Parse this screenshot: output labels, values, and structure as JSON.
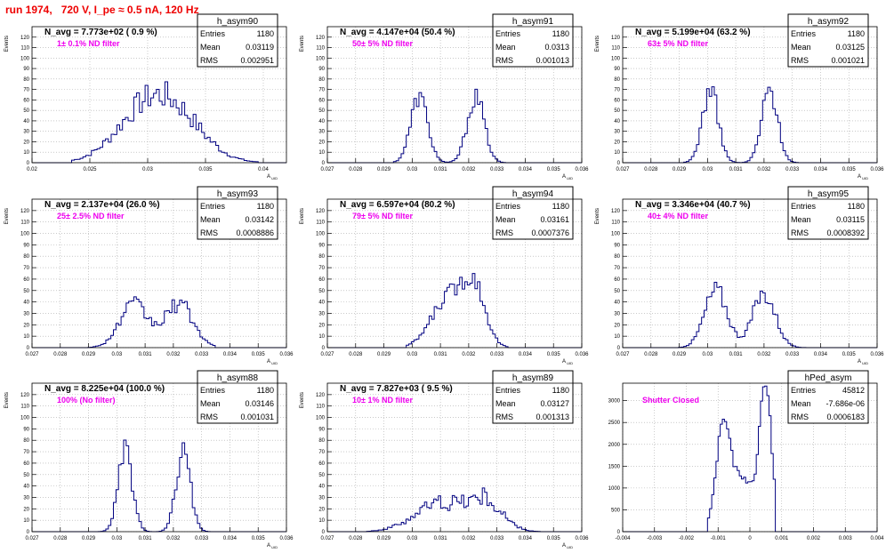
{
  "page": {
    "title": "run 1974,   720 V, I_pe ≈ 0.5 nA, 120 Hz"
  },
  "chart_data": [
    {
      "type": "bar",
      "name": "h_asym90",
      "summary": "N_avg = 7.773e+02 ( 0.9 %)",
      "filter": "1± 0.1% ND filter",
      "stats": [
        [
          "Entries",
          "1180"
        ],
        [
          "Mean",
          "0.03119"
        ],
        [
          "RMS",
          "0.002951"
        ]
      ],
      "xlabel": "A_UID",
      "ylabel": "Events",
      "xlim": [
        0.02,
        0.042
      ],
      "ylim": [
        0,
        130
      ],
      "grid": true,
      "xticks": [
        0.02,
        0.025,
        0.03,
        0.035,
        0.04
      ],
      "xtick_labels": [
        "0.02",
        "0.025",
        "0.03",
        "0.035",
        "0.04"
      ],
      "yticks": [
        0,
        10,
        20,
        30,
        40,
        50,
        60,
        70,
        80,
        90,
        100,
        110,
        120
      ],
      "ytick_labels": [
        "0",
        "10",
        "20",
        "30",
        "40",
        "50",
        "60",
        "70",
        "80",
        "90",
        "100",
        "110",
        "120"
      ],
      "peaks": [
        [
          0.0295,
          40,
          0.0025
        ],
        [
          0.0325,
          38,
          0.0025
        ]
      ],
      "range": [
        0.0235,
        0.0395
      ],
      "bins": 90,
      "noise": 0.22
    },
    {
      "type": "bar",
      "name": "h_asym91",
      "summary": "N_avg = 4.147e+04 (50.4 %)",
      "filter": "50± 5% ND filter",
      "stats": [
        [
          "Entries",
          "1180"
        ],
        [
          "Mean",
          "0.0313"
        ],
        [
          "RMS",
          "0.001013"
        ]
      ],
      "xlabel": "A_UID",
      "ylabel": "Events",
      "xlim": [
        0.027,
        0.036
      ],
      "ylim": [
        0,
        130
      ],
      "grid": true,
      "xticks": [
        0.027,
        0.028,
        0.029,
        0.03,
        0.031,
        0.032,
        0.033,
        0.034,
        0.035,
        0.036
      ],
      "xtick_labels": [
        "0.027",
        "0.028",
        "0.029",
        "0.03",
        "0.031",
        "0.032",
        "0.033",
        "0.034",
        "0.035",
        "0.036"
      ],
      "yticks": [
        0,
        10,
        20,
        30,
        40,
        50,
        60,
        70,
        80,
        90,
        100,
        110,
        120
      ],
      "ytick_labels": [
        "0",
        "10",
        "20",
        "30",
        "40",
        "50",
        "60",
        "70",
        "80",
        "90",
        "100",
        "110",
        "120"
      ],
      "peaks": [
        [
          0.03025,
          63,
          0.0003
        ],
        [
          0.03225,
          63,
          0.0003
        ]
      ],
      "range": [
        0.0293,
        0.0333
      ],
      "bins": 100,
      "noise": 0.15
    },
    {
      "type": "bar",
      "name": "h_asym92",
      "summary": "N_avg = 5.199e+04 (63.2 %)",
      "filter": "63± 5% ND filter",
      "stats": [
        [
          "Entries",
          "1180"
        ],
        [
          "Mean",
          "0.03125"
        ],
        [
          "RMS",
          "0.001021"
        ]
      ],
      "xlabel": "A_UID",
      "ylabel": "Events",
      "xlim": [
        0.027,
        0.036
      ],
      "ylim": [
        0,
        130
      ],
      "grid": true,
      "xticks": [
        0.027,
        0.028,
        0.029,
        0.03,
        0.031,
        0.032,
        0.033,
        0.034,
        0.035,
        0.036
      ],
      "xtick_labels": [
        "0.027",
        "0.028",
        "0.029",
        "0.03",
        "0.031",
        "0.032",
        "0.033",
        "0.034",
        "0.035",
        "0.036"
      ],
      "yticks": [
        0,
        10,
        20,
        30,
        40,
        50,
        60,
        70,
        80,
        90,
        100,
        110,
        120
      ],
      "ytick_labels": [
        "0",
        "10",
        "20",
        "30",
        "40",
        "50",
        "60",
        "70",
        "80",
        "90",
        "100",
        "110",
        "120"
      ],
      "peaks": [
        [
          0.0301,
          70,
          0.00028
        ],
        [
          0.0322,
          70,
          0.00028
        ]
      ],
      "range": [
        0.0292,
        0.0332
      ],
      "bins": 100,
      "noise": 0.15
    },
    {
      "type": "bar",
      "name": "h_asym93",
      "summary": "N_avg = 2.137e+04 (26.0 %)",
      "filter": "25± 2.5% ND filter",
      "stats": [
        [
          "Entries",
          "1180"
        ],
        [
          "Mean",
          "0.03142"
        ],
        [
          "RMS",
          "0.0008886"
        ]
      ],
      "xlabel": "A_UID",
      "ylabel": "Events",
      "xlim": [
        0.027,
        0.036
      ],
      "ylim": [
        0,
        130
      ],
      "grid": true,
      "xticks": [
        0.027,
        0.028,
        0.029,
        0.03,
        0.031,
        0.032,
        0.033,
        0.034,
        0.035,
        0.036
      ],
      "xtick_labels": [
        "0.027",
        "0.028",
        "0.029",
        "0.03",
        "0.031",
        "0.032",
        "0.033",
        "0.034",
        "0.035",
        "0.036"
      ],
      "yticks": [
        0,
        10,
        20,
        30,
        40,
        50,
        60,
        70,
        80,
        90,
        100,
        110,
        120
      ],
      "ytick_labels": [
        "0",
        "10",
        "20",
        "30",
        "40",
        "50",
        "60",
        "70",
        "80",
        "90",
        "100",
        "110",
        "120"
      ],
      "peaks": [
        [
          0.0306,
          37,
          0.0005
        ],
        [
          0.0322,
          38,
          0.0005
        ]
      ],
      "range": [
        0.029,
        0.0335
      ],
      "bins": 100,
      "noise": 0.2
    },
    {
      "type": "bar",
      "name": "h_asym94",
      "summary": "N_avg = 6.597e+04 (80.2 %)",
      "filter": "79± 5% ND filter",
      "stats": [
        [
          "Entries",
          "1180"
        ],
        [
          "Mean",
          "0.03161"
        ],
        [
          "RMS",
          "0.0007376"
        ]
      ],
      "xlabel": "A_UID",
      "ylabel": "Events",
      "xlim": [
        0.027,
        0.036
      ],
      "ylim": [
        0,
        130
      ],
      "grid": true,
      "xticks": [
        0.027,
        0.028,
        0.029,
        0.03,
        0.031,
        0.032,
        0.033,
        0.034,
        0.035,
        0.036
      ],
      "xtick_labels": [
        "0.027",
        "0.028",
        "0.029",
        "0.03",
        "0.031",
        "0.032",
        "0.033",
        "0.034",
        "0.035",
        "0.036"
      ],
      "yticks": [
        0,
        10,
        20,
        30,
        40,
        50,
        60,
        70,
        80,
        90,
        100,
        110,
        120
      ],
      "ytick_labels": [
        "0",
        "10",
        "20",
        "30",
        "40",
        "50",
        "60",
        "70",
        "80",
        "90",
        "100",
        "110",
        "120"
      ],
      "peaks": [
        [
          0.0313,
          44,
          0.0006
        ],
        [
          0.0322,
          47,
          0.0004
        ]
      ],
      "range": [
        0.0298,
        0.0334
      ],
      "bins": 100,
      "noise": 0.15
    },
    {
      "type": "bar",
      "name": "h_asym95",
      "summary": "N_avg = 3.346e+04 (40.7 %)",
      "filter": "40± 4% ND filter",
      "stats": [
        [
          "Entries",
          "1180"
        ],
        [
          "Mean",
          "0.03115"
        ],
        [
          "RMS",
          "0.0008392"
        ]
      ],
      "xlabel": "A_UID",
      "ylabel": "Events",
      "xlim": [
        0.027,
        0.036
      ],
      "ylim": [
        0,
        130
      ],
      "grid": true,
      "xticks": [
        0.027,
        0.028,
        0.029,
        0.03,
        0.031,
        0.032,
        0.033,
        0.034,
        0.035,
        0.036
      ],
      "xtick_labels": [
        "0.027",
        "0.028",
        "0.029",
        "0.03",
        "0.031",
        "0.032",
        "0.033",
        "0.034",
        "0.035",
        "0.036"
      ],
      "yticks": [
        0,
        10,
        20,
        30,
        40,
        50,
        60,
        70,
        80,
        90,
        100,
        110,
        120
      ],
      "ytick_labels": [
        "0",
        "10",
        "20",
        "30",
        "40",
        "50",
        "60",
        "70",
        "80",
        "90",
        "100",
        "110",
        "120"
      ],
      "peaks": [
        [
          0.0303,
          50,
          0.0004
        ],
        [
          0.032,
          47,
          0.0004
        ]
      ],
      "range": [
        0.029,
        0.0335
      ],
      "bins": 100,
      "noise": 0.18
    },
    {
      "type": "bar",
      "name": "h_asym88",
      "summary": "N_avg = 8.225e+04 (100.0 %)",
      "filter": "100% (No filter)",
      "stats": [
        [
          "Entries",
          "1180"
        ],
        [
          "Mean",
          "0.03146"
        ],
        [
          "RMS",
          "0.001031"
        ]
      ],
      "xlabel": "A_UID",
      "ylabel": "Events",
      "xlim": [
        0.027,
        0.036
      ],
      "ylim": [
        0,
        130
      ],
      "grid": true,
      "xticks": [
        0.027,
        0.028,
        0.029,
        0.03,
        0.031,
        0.032,
        0.033,
        0.034,
        0.035,
        0.036
      ],
      "xtick_labels": [
        "0.027",
        "0.028",
        "0.029",
        "0.03",
        "0.031",
        "0.032",
        "0.033",
        "0.034",
        "0.035",
        "0.036"
      ],
      "yticks": [
        0,
        10,
        20,
        30,
        40,
        50,
        60,
        70,
        80,
        90,
        100,
        110,
        120
      ],
      "ytick_labels": [
        "0",
        "10",
        "20",
        "30",
        "40",
        "50",
        "60",
        "70",
        "80",
        "90",
        "100",
        "110",
        "120"
      ],
      "peaks": [
        [
          0.0303,
          70,
          0.00025
        ],
        [
          0.03235,
          70,
          0.00025
        ]
      ],
      "range": [
        0.0293,
        0.0333
      ],
      "bins": 100,
      "noise": 0.15
    },
    {
      "type": "bar",
      "name": "h_asym89",
      "summary": "N_avg = 7.827e+03 ( 9.5 %)",
      "filter": "10± 1% ND filter",
      "stats": [
        [
          "Entries",
          "1180"
        ],
        [
          "Mean",
          "0.03127"
        ],
        [
          "RMS",
          "0.001313"
        ]
      ],
      "xlabel": "A_UID",
      "ylabel": "Events",
      "xlim": [
        0.027,
        0.036
      ],
      "ylim": [
        0,
        130
      ],
      "grid": true,
      "xticks": [
        0.027,
        0.028,
        0.029,
        0.03,
        0.031,
        0.032,
        0.033,
        0.034,
        0.035,
        0.036
      ],
      "xtick_labels": [
        "0.027",
        "0.028",
        "0.029",
        "0.03",
        "0.031",
        "0.032",
        "0.033",
        "0.034",
        "0.035",
        "0.036"
      ],
      "yticks": [
        0,
        10,
        20,
        30,
        40,
        50,
        60,
        70,
        80,
        90,
        100,
        110,
        120
      ],
      "ytick_labels": [
        "0",
        "10",
        "20",
        "30",
        "40",
        "50",
        "60",
        "70",
        "80",
        "90",
        "100",
        "110",
        "120"
      ],
      "peaks": [
        [
          0.031,
          25,
          0.0009
        ],
        [
          0.0326,
          24,
          0.0006
        ]
      ],
      "range": [
        0.0284,
        0.0345
      ],
      "bins": 110,
      "noise": 0.3
    },
    {
      "type": "bar",
      "name": "hPed_asym",
      "summary": "",
      "filter": "Shutter Closed",
      "stats": [
        [
          "Entries",
          "45812"
        ],
        [
          "Mean",
          "-7.686e-06"
        ],
        [
          "RMS",
          "0.0006183"
        ]
      ],
      "xlabel": "",
      "ylabel": "",
      "xlim": [
        -0.004,
        0.004
      ],
      "ylim": [
        0,
        3400
      ],
      "grid": true,
      "xticks": [
        -0.004,
        -0.003,
        -0.002,
        -0.001,
        0,
        0.001,
        0.002,
        0.003,
        0.004
      ],
      "xtick_labels": [
        "-0.004",
        "-0.003",
        "-0.002",
        "-0.001",
        "0",
        "0.001",
        "0.002",
        "0.003",
        "0.004"
      ],
      "yticks": [
        0,
        500,
        1000,
        1500,
        2000,
        2500,
        3000
      ],
      "ytick_labels": [
        "0",
        "500",
        "1000",
        "1500",
        "2000",
        "2500",
        "3000"
      ],
      "peaks": [
        [
          -0.00085,
          1900,
          0.0002
        ],
        [
          -0.0003,
          1250,
          0.0005
        ],
        [
          0.0005,
          3150,
          0.00018
        ]
      ],
      "range": [
        -0.0013,
        0.0008
      ],
      "bins": 120,
      "noise": 0.05
    }
  ]
}
